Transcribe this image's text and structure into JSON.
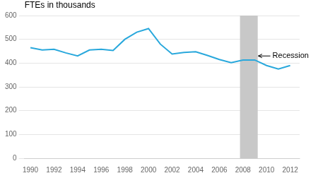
{
  "chart_data": {
    "type": "line",
    "ylabel": "FTEs in thousands",
    "x": [
      1990,
      1991,
      1992,
      1993,
      1994,
      1995,
      1996,
      1997,
      1998,
      1999,
      2000,
      2001,
      2002,
      2003,
      2004,
      2005,
      2006,
      2007,
      2008,
      2009,
      2010,
      2011,
      2012
    ],
    "values": [
      465,
      455,
      458,
      443,
      430,
      455,
      458,
      453,
      500,
      530,
      545,
      480,
      438,
      445,
      448,
      432,
      415,
      402,
      413,
      413,
      390,
      375,
      390
    ],
    "color": "#29a8dc",
    "xlim": [
      1989.5,
      2012.8
    ],
    "xticks": [
      1990,
      1992,
      1994,
      1996,
      1998,
      2000,
      2002,
      2004,
      2006,
      2008,
      2010,
      2012
    ],
    "ylim": [
      0,
      600
    ],
    "yticks": [
      0,
      100,
      200,
      300,
      400,
      500,
      600
    ],
    "grid": "y",
    "annotations": [
      {
        "type": "span",
        "x0": 2007.75,
        "x1": 2009.25,
        "color": "#c8c8c8"
      },
      {
        "type": "text",
        "text": "Recession",
        "x": 2010.5,
        "y": 430,
        "arrow_x": 2009.3,
        "arrow_y": 430
      }
    ]
  }
}
